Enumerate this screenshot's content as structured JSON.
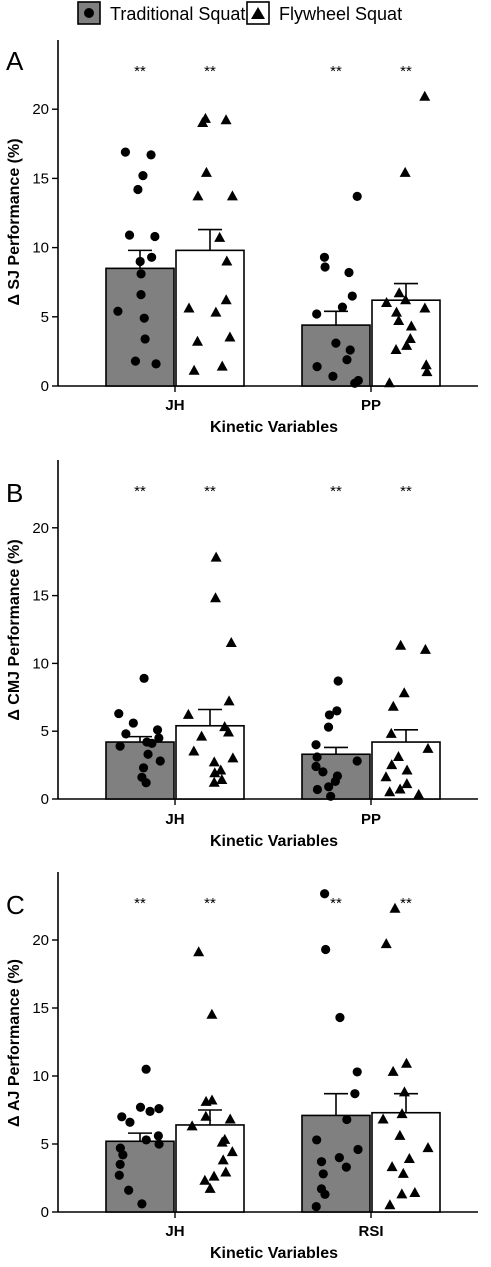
{
  "legend": {
    "position": "top-center",
    "items": [
      {
        "label": "Traditional Squat",
        "marker": "circle",
        "fill": "#808080"
      },
      {
        "label": "Flywheel Squat",
        "marker": "triangle",
        "fill": "#ffffff"
      }
    ]
  },
  "chart_data": [
    {
      "type": "bar",
      "panel_label": "A",
      "ylabel": "Δ SJ Performance (%)",
      "xlabel": "Kinetic Variables",
      "ylim": [
        0,
        25
      ],
      "yticks": [
        0,
        5,
        10,
        15,
        20
      ],
      "categories": [
        "JH",
        "PP"
      ],
      "significance": [
        [
          "**",
          "**"
        ],
        [
          "**",
          "**"
        ]
      ],
      "series": [
        {
          "name": "Traditional Squat",
          "values": [
            8.5,
            4.4
          ],
          "error": [
            1.3,
            1.0
          ],
          "points": [
            [
              16.9,
              16.7,
              15.2,
              14.2,
              10.9,
              10.8,
              9.3,
              9.0,
              8.1,
              6.6,
              5.4,
              4.9,
              3.4,
              1.8,
              1.6
            ],
            [
              13.7,
              9.3,
              8.6,
              8.2,
              6.5,
              5.7,
              5.2,
              3.1,
              2.6,
              1.9,
              1.4,
              0.7,
              0.4,
              0.2
            ]
          ]
        },
        {
          "name": "Flywheel Squat",
          "values": [
            9.8,
            6.2
          ],
          "error": [
            1.5,
            1.2
          ],
          "points": [
            [
              19.3,
              19.2,
              19.0,
              15.4,
              13.7,
              13.7,
              10.7,
              9.0,
              6.2,
              5.6,
              5.3,
              3.5,
              3.2,
              1.4,
              1.1
            ],
            [
              20.9,
              15.4,
              6.7,
              6.2,
              6.0,
              5.6,
              5.3,
              4.7,
              4.3,
              3.4,
              2.9,
              2.6,
              1.5,
              1.0,
              0.2
            ]
          ]
        }
      ]
    },
    {
      "type": "bar",
      "panel_label": "B",
      "ylabel": "Δ CMJ Performance (%)",
      "xlabel": "Kinetic Variables",
      "ylim": [
        0,
        25
      ],
      "yticks": [
        0,
        5,
        10,
        15,
        20
      ],
      "categories": [
        "JH",
        "PP"
      ],
      "significance": [
        [
          "**",
          "**"
        ],
        [
          "**",
          "**"
        ]
      ],
      "series": [
        {
          "name": "Traditional Squat",
          "values": [
            4.2,
            3.3
          ],
          "error": [
            0.4,
            0.5
          ],
          "points": [
            [
              8.9,
              6.3,
              5.6,
              5.1,
              4.8,
              4.5,
              4.2,
              4.1,
              3.9,
              3.3,
              2.8,
              2.3,
              1.6,
              1.2
            ],
            [
              8.7,
              6.5,
              6.2,
              5.3,
              4.0,
              3.1,
              2.8,
              2.4,
              2.0,
              1.7,
              1.3,
              0.9,
              0.7,
              0.2
            ]
          ]
        },
        {
          "name": "Flywheel Squat",
          "values": [
            5.4,
            4.2
          ],
          "error": [
            1.2,
            0.9
          ],
          "points": [
            [
              17.8,
              14.8,
              11.5,
              7.2,
              6.2,
              5.3,
              4.9,
              4.6,
              3.5,
              3.0,
              2.7,
              2.1,
              1.9,
              1.4,
              1.2
            ],
            [
              11.3,
              11.0,
              7.8,
              6.8,
              4.8,
              3.7,
              3.1,
              2.5,
              2.1,
              1.6,
              1.1,
              0.7,
              0.5,
              0.3
            ]
          ]
        }
      ]
    },
    {
      "type": "bar",
      "panel_label": "C",
      "ylabel": "Δ AJ Performance (%)",
      "xlabel": "Kinetic Variables",
      "ylim": [
        0,
        25
      ],
      "yticks": [
        0,
        5,
        10,
        15,
        20
      ],
      "categories": [
        "JH",
        "RSI"
      ],
      "significance": [
        [
          "**",
          "**"
        ],
        [
          "**",
          "**"
        ]
      ],
      "series": [
        {
          "name": "Traditional Squat",
          "values": [
            5.2,
            7.1
          ],
          "error": [
            0.6,
            1.6
          ],
          "points": [
            [
              10.5,
              7.7,
              7.6,
              7.4,
              7.0,
              6.6,
              5.6,
              5.3,
              5.0,
              4.7,
              4.2,
              3.5,
              2.7,
              1.6,
              0.6
            ],
            [
              23.4,
              19.3,
              14.3,
              10.3,
              8.7,
              6.8,
              5.3,
              4.6,
              4.0,
              3.7,
              3.3,
              2.8,
              1.7,
              1.3,
              0.4
            ]
          ]
        },
        {
          "name": "Flywheel Squat",
          "values": [
            6.4,
            7.3
          ],
          "error": [
            1.1,
            1.4
          ],
          "points": [
            [
              19.1,
              14.5,
              8.2,
              8.1,
              7.0,
              6.8,
              6.3,
              5.3,
              5.1,
              4.4,
              3.8,
              2.9,
              2.6,
              2.3,
              1.7
            ],
            [
              22.3,
              19.7,
              10.9,
              10.3,
              8.8,
              7.2,
              6.8,
              5.6,
              4.7,
              3.9,
              3.3,
              2.8,
              1.4,
              1.3,
              0.5
            ]
          ]
        }
      ]
    }
  ]
}
